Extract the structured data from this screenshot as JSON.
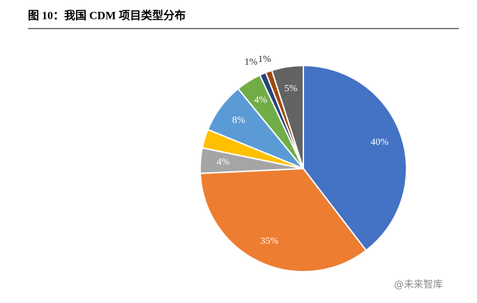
{
  "chart_data": {
    "type": "pie",
    "title": "图 10：我国 CDM 项目类型分布",
    "values": [
      40,
      35,
      4,
      3,
      8,
      4,
      1,
      1,
      5
    ],
    "value_labels": [
      "40%",
      "35%",
      "4%",
      null,
      "8%",
      "4%",
      "1%",
      "1%",
      "5%"
    ],
    "colors": [
      "#4472c4",
      "#ed7d31",
      "#a5a5a5",
      "#ffc000",
      "#5b9bd5",
      "#70ad47",
      "#264478",
      "#9e480e",
      "#636363"
    ],
    "watermark": "@未来智库"
  }
}
